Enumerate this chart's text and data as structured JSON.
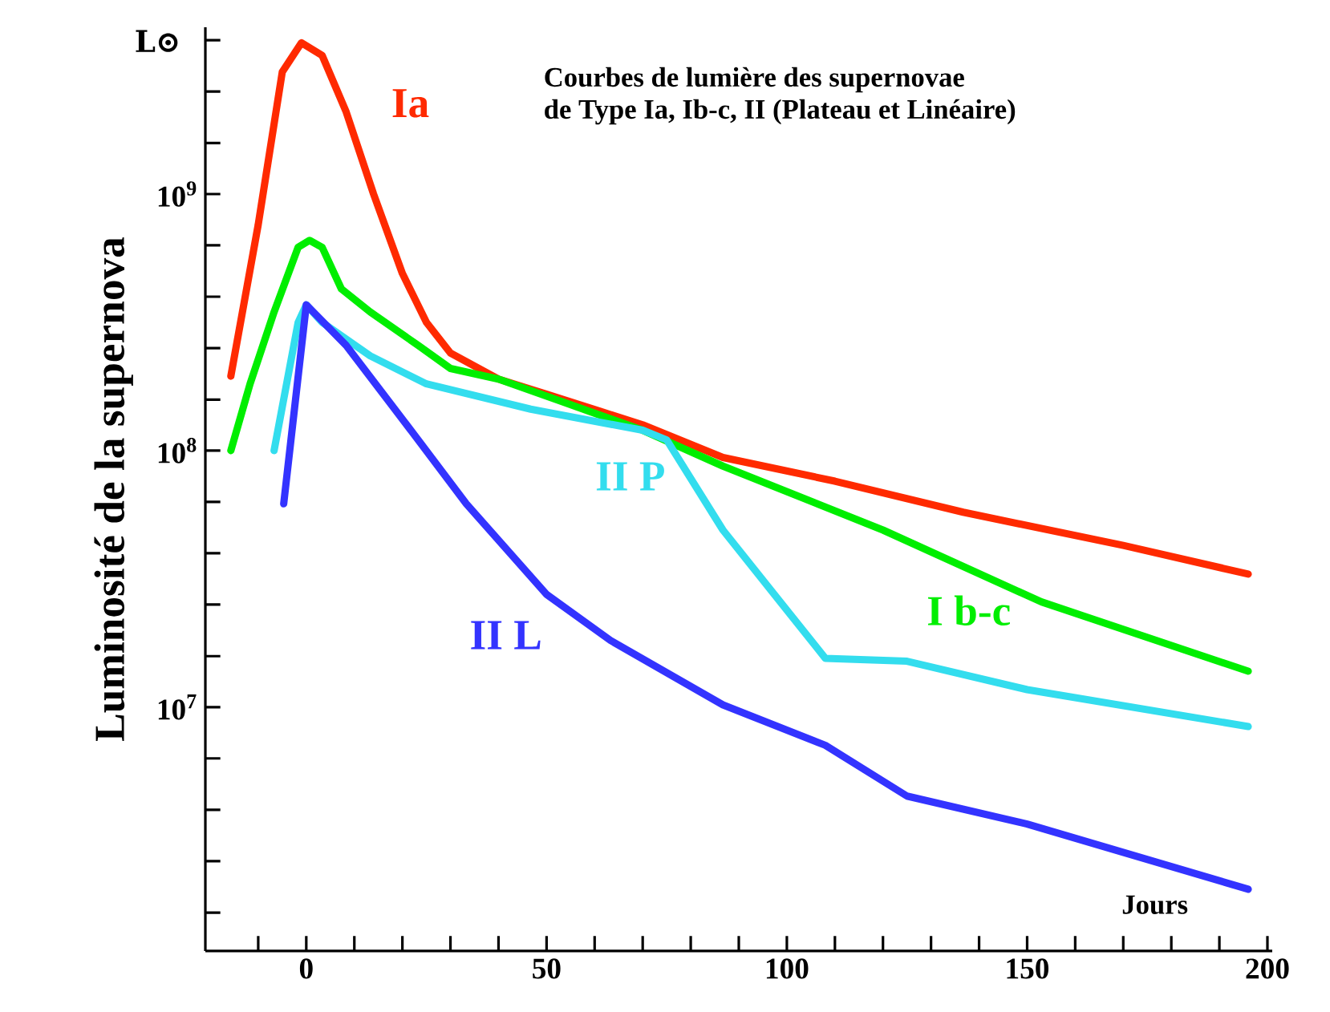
{
  "chart_data": {
    "type": "line",
    "title": "Courbes de lumière des supernovae",
    "subtitle": "de Type Ia, Ib-c, II (Plateau et Linéaire)",
    "xlabel": "Jours",
    "ylabel": "Luminosité de la supernova",
    "annotations": [
      "L⊙"
    ],
    "log": "y",
    "legend": false,
    "grid": false,
    "xlim": [
      -21,
      201
    ],
    "ylim": [
      1120000.0,
      4470000000.0
    ],
    "xticks": [
      {
        "value": -10,
        "label": null
      },
      0,
      {
        "value": 10,
        "label": null
      },
      {
        "value": 20,
        "label": null
      },
      {
        "value": 30,
        "label": null
      },
      {
        "value": 40,
        "label": null
      },
      50,
      {
        "value": 60,
        "label": null
      },
      {
        "value": 70,
        "label": null
      },
      {
        "value": 80,
        "label": null
      },
      {
        "value": 90,
        "label": null
      },
      100,
      {
        "value": 110,
        "label": null
      },
      {
        "value": 120,
        "label": null
      },
      {
        "value": 130,
        "label": null
      },
      {
        "value": 140,
        "label": null
      },
      150,
      {
        "value": 160,
        "label": null
      },
      {
        "value": 170,
        "label": null
      },
      {
        "value": 180,
        "label": null
      },
      {
        "value": 190,
        "label": null
      },
      200
    ],
    "yticks": [
      {
        "value": 1580000.0,
        "label": null
      },
      {
        "value": 2510000.0,
        "label": null
      },
      {
        "value": 3980000.0,
        "label": null
      },
      {
        "value": 6310000.0,
        "label": null
      },
      {
        "value": 10000000.0,
        "label": "10$^{7}$"
      },
      {
        "value": 15800000.0,
        "label": null
      },
      {
        "value": 25100000.0,
        "label": null
      },
      {
        "value": 39800000.0,
        "label": null
      },
      {
        "value": 63100000.0,
        "label": null
      },
      {
        "value": 100000000.0,
        "label": "10$^{8}$"
      },
      {
        "value": 158000000.0,
        "label": null
      },
      {
        "value": 251000000.0,
        "label": null
      },
      {
        "value": 398000000.0,
        "label": null
      },
      {
        "value": 631000000.0,
        "label": null
      },
      {
        "value": 1000000000.0,
        "label": "10$^{9}$"
      },
      {
        "value": 1580000000.0,
        "label": null
      },
      {
        "value": 2510000000.0,
        "label": null
      },
      {
        "value": 3980000000.0,
        "label": null
      }
    ],
    "series": [
      {
        "name": "Ia",
        "color": "#ff2a00",
        "x": [
          -15.7,
          -10,
          -5,
          -1,
          3.3,
          8.3,
          14,
          20,
          25,
          30,
          40,
          50,
          70,
          86.7,
          110,
          136.7,
          170,
          196
        ],
        "values": [
          195000000.0,
          760000000.0,
          2990000000.0,
          3890000000.0,
          3470000000.0,
          2090000000.0,
          1000000000.0,
          490000000.0,
          316000000.0,
          240000000.0,
          190000000.0,
          166000000.0,
          126000000.0,
          94000000.0,
          76000000.0,
          57500000.0,
          42700000.0,
          33000000.0
        ]
      },
      {
        "name": "I b-c",
        "color": "#00ee00",
        "x": [
          -15.7,
          -11.7,
          -6.7,
          -1.7,
          0.7,
          3.3,
          7.3,
          13.3,
          23.3,
          30,
          40,
          53.3,
          70,
          86.7,
          120,
          153,
          196
        ],
        "values": [
          100000000.0,
          182000000.0,
          347000000.0,
          620000000.0,
          660000000.0,
          620000000.0,
          427000000.0,
          347000000.0,
          257000000.0,
          209000000.0,
          190000000.0,
          155000000.0,
          120000000.0,
          87000000.0,
          49000000.0,
          25700000.0,
          13800000.0
        ]
      },
      {
        "name": "II P",
        "color": "#33ddee",
        "x": [
          -6.7,
          -1.7,
          0,
          3.3,
          13.3,
          25,
          46.7,
          70,
          75,
          86.7,
          108,
          125,
          150,
          196
        ],
        "values": [
          100000000.0,
          316000000.0,
          370000000.0,
          316000000.0,
          234000000.0,
          182000000.0,
          145000000.0,
          120000000.0,
          110000000.0,
          49000000.0,
          15500000.0,
          15100000.0,
          11700000.0,
          8400000.0
        ]
      },
      {
        "name": "II L",
        "color": "#3333ff",
        "x": [
          -4.7,
          0,
          8.3,
          23.3,
          33.3,
          50,
          63.3,
          86.7,
          108,
          125,
          150,
          196
        ],
        "values": [
          62000000.0,
          370000000.0,
          257000000.0,
          110000000.0,
          62000000.0,
          27500000.0,
          18200000.0,
          10200000.0,
          7100000.0,
          4500000.0,
          3500000.0,
          1950000.0
        ]
      }
    ]
  }
}
